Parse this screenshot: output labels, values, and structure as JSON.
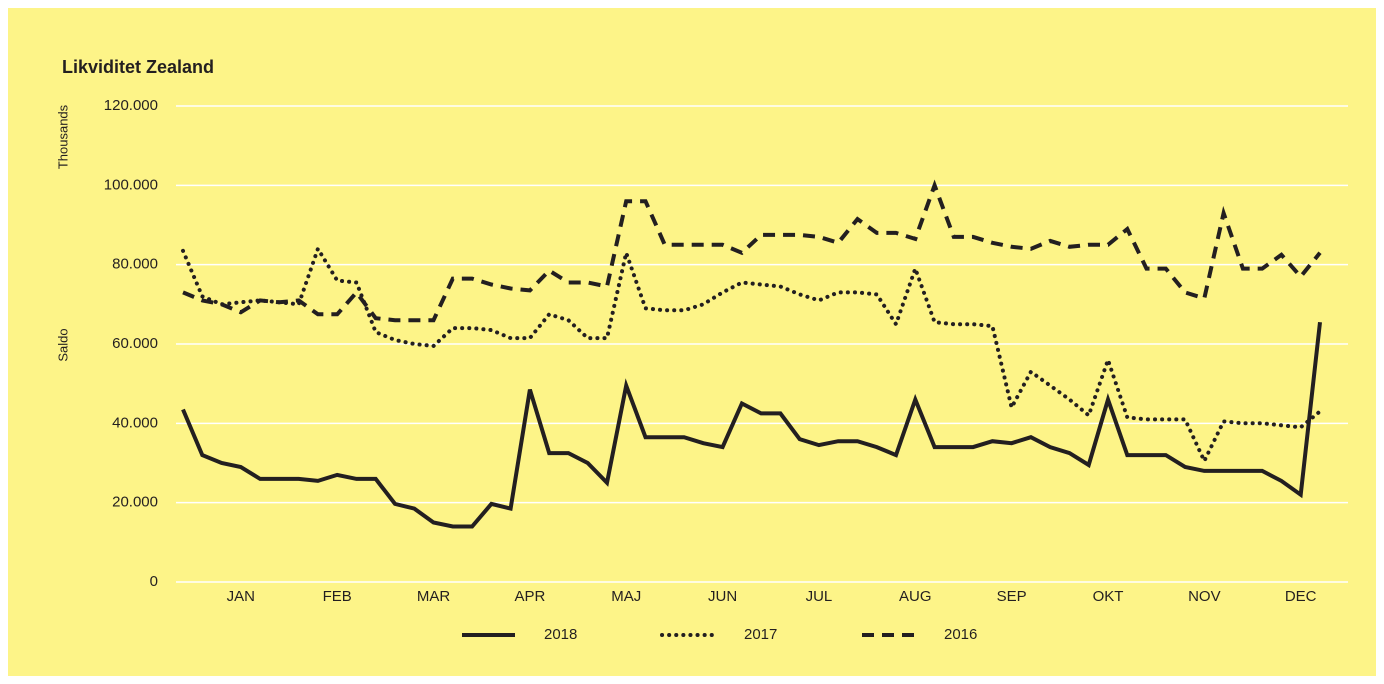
{
  "chart_data": {
    "type": "line",
    "title": "Likviditet Zealand",
    "y_label": "Saldo",
    "y_unit_label": "Thousands",
    "categories": [
      null,
      null,
      null,
      "JAN",
      null,
      null,
      null,
      null,
      "FEB",
      null,
      null,
      null,
      null,
      "MAR",
      null,
      null,
      null,
      null,
      "APR",
      null,
      null,
      null,
      null,
      "MAJ",
      null,
      null,
      null,
      null,
      "JUN",
      null,
      null,
      null,
      null,
      "JUL",
      null,
      null,
      null,
      null,
      "AUG",
      null,
      null,
      null,
      null,
      "SEP",
      null,
      null,
      null,
      null,
      "OKT",
      null,
      null,
      null,
      null,
      "NOV",
      null,
      null,
      null,
      null,
      "DEC",
      null
    ],
    "series": [
      {
        "name": "2018",
        "color": "#231f20",
        "style": "solid",
        "values": [
          43500,
          32000,
          30000,
          29000,
          26000,
          26000,
          26000,
          25500,
          27000,
          26000,
          26000,
          19700,
          18500,
          15000,
          14000,
          14000,
          19700,
          18500,
          48500,
          32500,
          32500,
          30000,
          25000,
          49500,
          36500,
          36500,
          36500,
          35000,
          34000,
          45000,
          42500,
          42500,
          36000,
          34500,
          35500,
          35500,
          34000,
          32000,
          46000,
          34000,
          34000,
          34000,
          35500,
          35000,
          36500,
          34000,
          32500,
          29500,
          46000,
          32000,
          32000,
          32000,
          29000,
          28000,
          28000,
          28000,
          28000,
          25500,
          22000,
          65500
        ]
      },
      {
        "name": "2017",
        "color": "#231f20",
        "style": "dotted",
        "values": [
          83500,
          72000,
          70000,
          70500,
          71000,
          70500,
          70000,
          84000,
          76000,
          75500,
          63000,
          61000,
          60000,
          59500,
          64000,
          64000,
          63500,
          61500,
          61500,
          67500,
          66000,
          61500,
          61500,
          83000,
          69000,
          68500,
          68500,
          70000,
          73000,
          75500,
          75000,
          74500,
          72500,
          71000,
          73000,
          73000,
          72500,
          65000,
          79000,
          65500,
          65000,
          65000,
          64500,
          44000,
          53000,
          49500,
          46000,
          42000,
          56000,
          41500,
          41000,
          41000,
          41000,
          30500,
          40500,
          40000,
          40000,
          39500,
          39000,
          43000
        ]
      },
      {
        "name": "2016",
        "color": "#231f20",
        "style": "dashed",
        "values": [
          73000,
          71000,
          70000,
          68000,
          71000,
          70500,
          71000,
          67500,
          67500,
          73000,
          66500,
          66000,
          66000,
          66000,
          76500,
          76500,
          75000,
          74000,
          73500,
          78500,
          75500,
          75500,
          74500,
          96000,
          96000,
          85000,
          85000,
          85000,
          85000,
          83000,
          87500,
          87500,
          87500,
          87000,
          85500,
          91500,
          88000,
          88000,
          86500,
          100000,
          87000,
          87000,
          85500,
          84500,
          84000,
          86000,
          84500,
          85000,
          85000,
          89000,
          79000,
          79000,
          73000,
          71500,
          93000,
          79000,
          79000,
          82500,
          77000,
          83000
        ]
      }
    ],
    "ylim": [
      0,
      120000
    ],
    "yticks": [
      {
        "value": 0,
        "label": "0"
      },
      {
        "value": 20000,
        "label": "20.000"
      },
      {
        "value": 40000,
        "label": "40.000"
      },
      {
        "value": 60000,
        "label": "60.000"
      },
      {
        "value": 80000,
        "label": "80.000"
      },
      {
        "value": 100000,
        "label": "100.000"
      },
      {
        "value": 120000,
        "label": "120.000"
      }
    ],
    "grid": true,
    "background": "#fdf488",
    "grid_color": "#ffffff",
    "legend": "bottom"
  }
}
